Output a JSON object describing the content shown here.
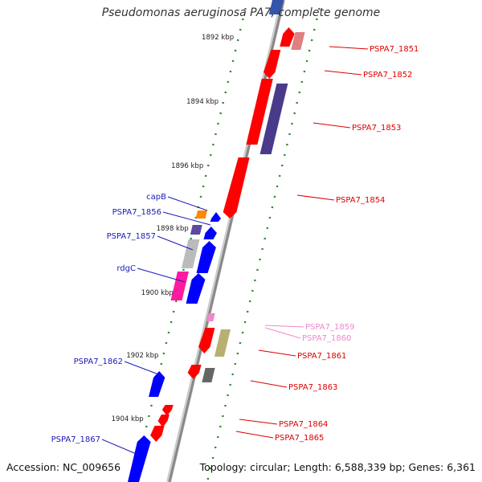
{
  "title": "Pseudomonas aeruginosa PA7, complete genome",
  "accession": "Accession: NC_009656",
  "summary": "Topology: circular; Length: 6,588,339 bp; Genes: 6,361",
  "colors": {
    "backbone": "#888888",
    "ticks": "#2a8a2a",
    "blue_label": "#1a1ab8",
    "red_label": "#dd0000",
    "pink_label": "#ee88cc"
  },
  "scale_labels": [
    "1892 kbp",
    "1894 kbp",
    "1896 kbp",
    "1898 kbp",
    "1900 kbp",
    "1902 kbp",
    "1904 kbp"
  ],
  "gene_labels": [
    {
      "text": "PSPA7_1851",
      "side": "right",
      "color": "red"
    },
    {
      "text": "PSPA7_1852",
      "side": "right",
      "color": "red"
    },
    {
      "text": "PSPA7_1853",
      "side": "right",
      "color": "red"
    },
    {
      "text": "PSPA7_1854",
      "side": "right",
      "color": "red"
    },
    {
      "text": "capB",
      "side": "left",
      "color": "blue"
    },
    {
      "text": "PSPA7_1856",
      "side": "left",
      "color": "blue"
    },
    {
      "text": "PSPA7_1857",
      "side": "left",
      "color": "blue"
    },
    {
      "text": "rdgC",
      "side": "left",
      "color": "blue"
    },
    {
      "text": "PSPA7_1859",
      "side": "right",
      "color": "pink"
    },
    {
      "text": "PSPA7_1860",
      "side": "right",
      "color": "pink"
    },
    {
      "text": "PSPA7_1861",
      "side": "right",
      "color": "red"
    },
    {
      "text": "PSPA7_1862",
      "side": "left",
      "color": "blue"
    },
    {
      "text": "PSPA7_1863",
      "side": "right",
      "color": "red"
    },
    {
      "text": "PSPA7_1864",
      "side": "right",
      "color": "red"
    },
    {
      "text": "PSPA7_1865",
      "side": "right",
      "color": "red"
    },
    {
      "text": "PSPA7_1867",
      "side": "left",
      "color": "blue"
    }
  ]
}
